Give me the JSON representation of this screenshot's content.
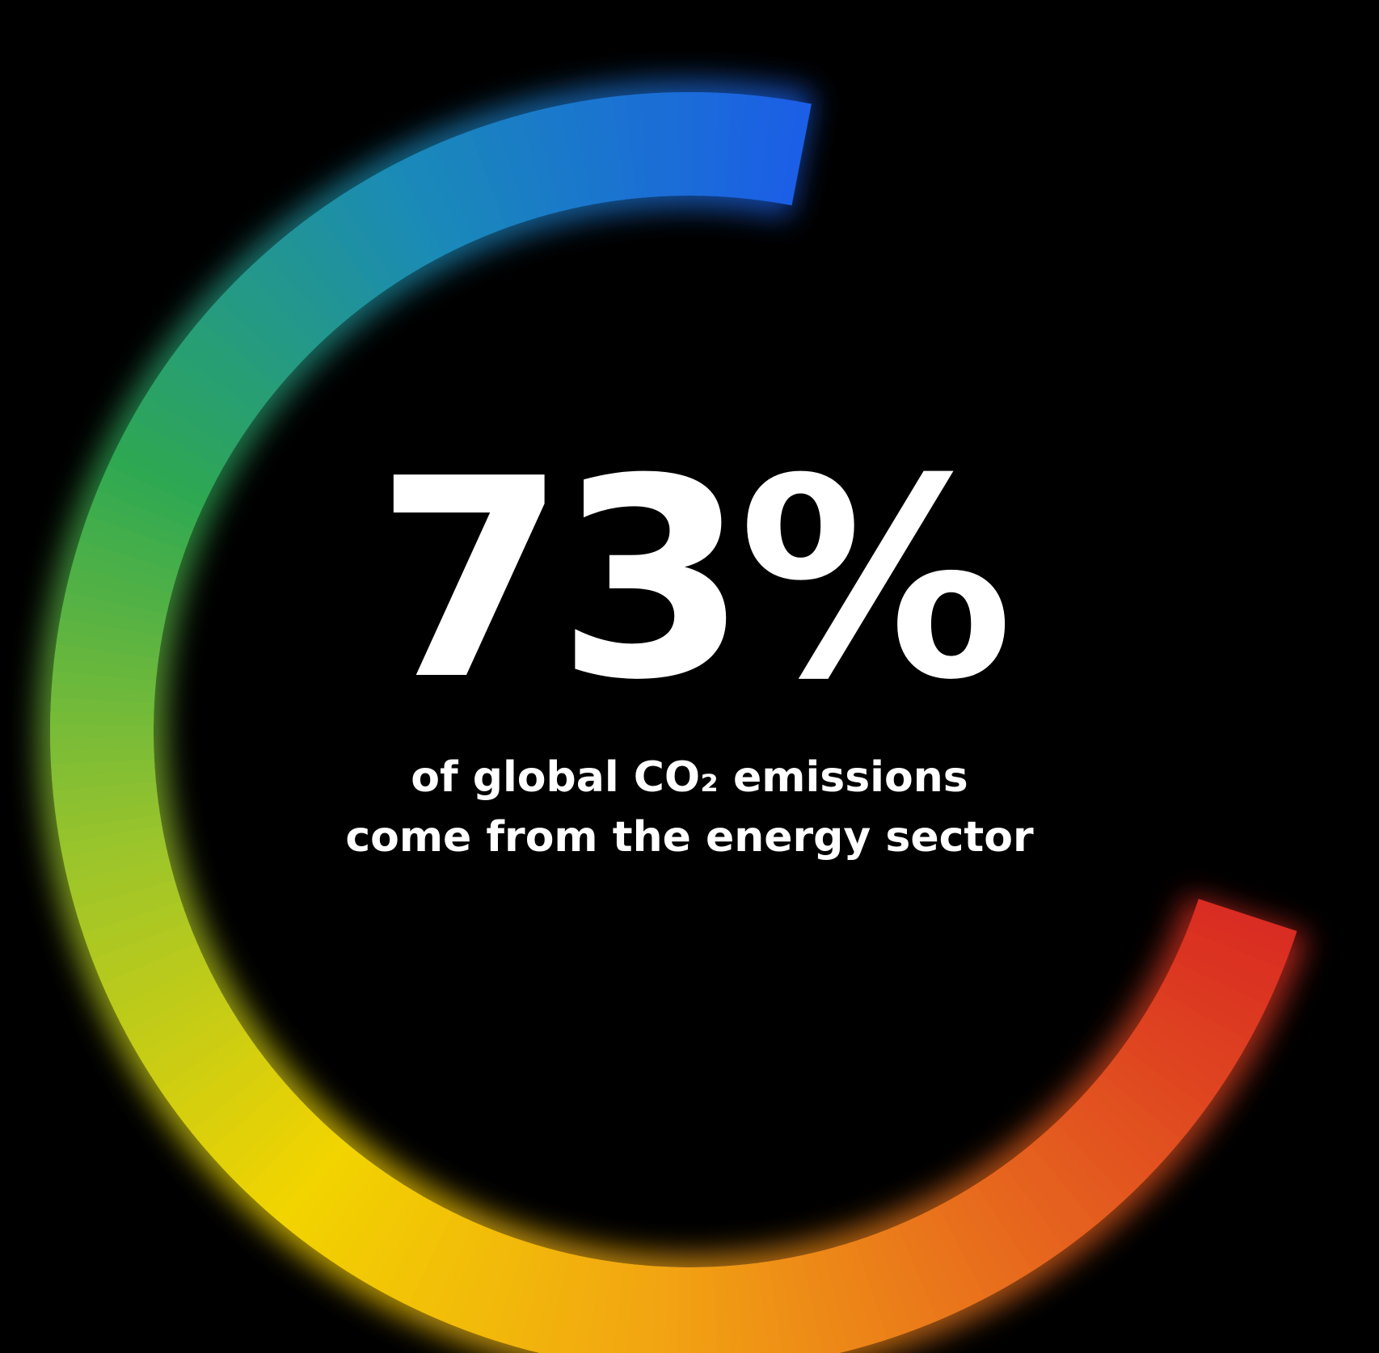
{
  "chart_data": {
    "type": "progress-ring",
    "value_percent": 73,
    "value_label": "73%",
    "caption_lines": [
      "of global CO₂ emissions",
      "come from the energy sector"
    ],
    "gradient_colors": [
      "#1b5fe6",
      "#1a8ab8",
      "#2fa852",
      "#9cc52a",
      "#f2d400",
      "#f2a412",
      "#e6651e",
      "#d92a22"
    ],
    "background_color": "#000000",
    "text_color": "#ffffff"
  }
}
